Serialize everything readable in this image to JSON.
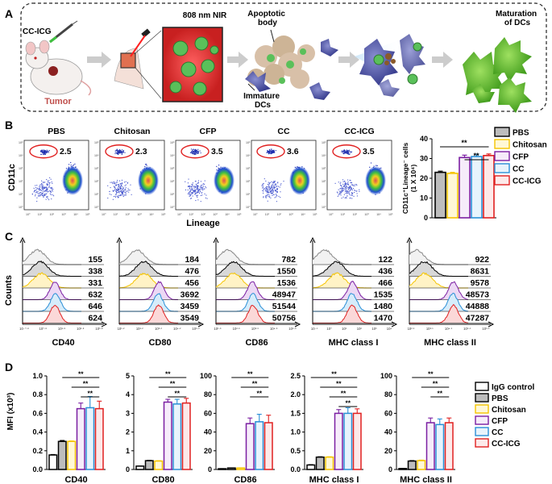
{
  "panel_a": {
    "label": "A",
    "drug": "CC-ICG",
    "nir": "808 nm NIR",
    "tumor": "Tumor",
    "apoptotic": "Apoptotic body",
    "immature": "Immature DCs",
    "maturation": "Maturation of DCs"
  },
  "panel_b": {
    "label": "B",
    "ylabel": "CD11c",
    "xlabel": "Lineage",
    "plots": [
      {
        "title": "PBS",
        "value": "2.5"
      },
      {
        "title": "Chitosan",
        "value": "2.3"
      },
      {
        "title": "CFP",
        "value": "3.5"
      },
      {
        "title": "CC",
        "value": "3.6"
      },
      {
        "title": "CC-ICG",
        "value": "3.5"
      }
    ],
    "ticks": [
      "10⁰",
      "10¹",
      "10²",
      "10³",
      "10⁴",
      "10⁵"
    ]
  },
  "groups": [
    {
      "name": "IgG control",
      "color": "#ffffff",
      "stroke": "#000000"
    },
    {
      "name": "PBS",
      "color": "#bdbdbd",
      "stroke": "#000000"
    },
    {
      "name": "Chitosan",
      "color": "#fff8d6",
      "stroke": "#f5c400"
    },
    {
      "name": "CFP",
      "color": "#f6ecfa",
      "stroke": "#7b1fa2"
    },
    {
      "name": "CC",
      "color": "#e8f4fc",
      "stroke": "#2a8fd6"
    },
    {
      "name": "CC-ICG",
      "color": "#fde9e9",
      "stroke": "#e02020"
    }
  ],
  "sig": "**",
  "chart_data": [
    {
      "type": "bar",
      "panel": "B",
      "title": "",
      "ylabel": "CD11c⁺Lineage⁻ cells",
      "yunits": "(1 X 10⁴)",
      "categories": [
        "PBS",
        "Chitosan",
        "CFP",
        "CC",
        "CC-ICG"
      ],
      "values": [
        23,
        22.5,
        30.5,
        31,
        31.5
      ],
      "errors": [
        0.6,
        0.5,
        1.2,
        1.2,
        0.8
      ],
      "ylim": [
        0,
        40
      ],
      "yticks": [
        "0",
        "10",
        "20",
        "30",
        "40"
      ],
      "legend": [
        "PBS",
        "Chitosan",
        "CFP",
        "CC",
        "CC-ICG"
      ],
      "significance": [
        {
          "from": "PBS",
          "to": "CC-ICG",
          "label": "**"
        },
        {
          "from": "CFP",
          "to": "CC-ICG",
          "label": "**"
        }
      ]
    },
    {
      "type": "histogram",
      "panel": "C",
      "ylabel": "Counts",
      "rows": [
        "IgG control",
        "PBS",
        "Chitosan",
        "CFP",
        "CC",
        "CC-ICG"
      ],
      "markers": [
        {
          "xlabel": "CD40",
          "mfi": [
            "155",
            "338",
            "331",
            "632",
            "646",
            "624"
          ],
          "ticks": [
            "10⁻⁰·⁸",
            "10⁰·⁸",
            "10¹·⁸",
            "10²·⁸",
            "10³·⁸"
          ]
        },
        {
          "xlabel": "CD80",
          "mfi": [
            "184",
            "476",
            "456",
            "3692",
            "3459",
            "3549"
          ],
          "ticks": [
            "10¹·²",
            "10²·²",
            "10³·²",
            "10⁴·²",
            "10⁵·²"
          ]
        },
        {
          "xlabel": "CD86",
          "mfi": [
            "782",
            "1550",
            "1536",
            "48947",
            "51544",
            "50756"
          ],
          "ticks": [
            "10¹·⁶",
            "10²·⁶",
            "10³·⁶",
            "10⁴·⁶",
            "10⁵·⁶"
          ]
        },
        {
          "xlabel": "MHC class I",
          "mfi": [
            "122",
            "436",
            "466",
            "1535",
            "1480",
            "1470"
          ],
          "ticks": [
            "10⁻¹",
            "10⁰",
            "10¹",
            "10²",
            "10³",
            "10⁴"
          ]
        },
        {
          "xlabel": "MHC class II",
          "mfi": [
            "922",
            "8631",
            "9578",
            "48573",
            "44888",
            "47287"
          ],
          "ticks": [
            "10²·¹",
            "10³·¹",
            "10⁴·¹",
            "10⁵·¹",
            "10⁶·¹"
          ]
        }
      ]
    },
    {
      "type": "bar",
      "panel": "D",
      "ylabel": "MFI (x10³)",
      "categories": [
        "IgG control",
        "PBS",
        "Chitosan",
        "CFP",
        "CC",
        "CC-ICG"
      ],
      "subplots": [
        {
          "xlabel": "CD40",
          "values": [
            0.155,
            0.3,
            0.3,
            0.65,
            0.66,
            0.65
          ],
          "errors": [
            0.005,
            0.01,
            0.005,
            0.06,
            0.12,
            0.08
          ],
          "ylim": [
            0,
            1.0
          ],
          "yticks": [
            "0.0",
            "0.2",
            "0.4",
            "0.6",
            "0.8",
            "1.0"
          ],
          "sig_pairs": [
            [
              1,
              5
            ],
            [
              2,
              5
            ],
            [
              3,
              5
            ]
          ]
        },
        {
          "xlabel": "CD80",
          "values": [
            0.18,
            0.47,
            0.45,
            3.6,
            3.5,
            3.55
          ],
          "errors": [
            0.01,
            0.02,
            0.02,
            0.15,
            0.25,
            0.25
          ],
          "ylim": [
            0,
            5
          ],
          "yticks": [
            "0",
            "1",
            "2",
            "3",
            "4",
            "5"
          ],
          "sig_pairs": [
            [
              1,
              5
            ],
            [
              2,
              5
            ],
            [
              3,
              5
            ]
          ]
        },
        {
          "xlabel": "CD86",
          "values": [
            0.8,
            1.6,
            1.6,
            49,
            51,
            50
          ],
          "errors": [
            0.1,
            0.1,
            0.1,
            6,
            8,
            8
          ],
          "ylim": [
            0,
            100
          ],
          "yticks": [
            "0",
            "20",
            "40",
            "60",
            "80",
            "100"
          ],
          "sig_pairs": [
            [
              1,
              5
            ],
            [
              2,
              5
            ],
            [
              3,
              5
            ]
          ]
        },
        {
          "xlabel": "MHC class I",
          "values": [
            0.12,
            0.33,
            0.33,
            1.5,
            1.5,
            1.5
          ],
          "errors": [
            0.01,
            0.01,
            0.01,
            0.1,
            0.15,
            0.12
          ],
          "ylim": [
            0,
            2.5
          ],
          "yticks": [
            "0.0",
            "0.5",
            "1.0",
            "1.5",
            "2.0",
            "2.5"
          ],
          "sig_pairs": [
            [
              0,
              5
            ],
            [
              1,
              5
            ],
            [
              2,
              5
            ],
            [
              3,
              5
            ]
          ]
        },
        {
          "xlabel": "MHC class II",
          "values": [
            1,
            9,
            9.5,
            50,
            48,
            50
          ],
          "errors": [
            0.2,
            0.5,
            0.5,
            5,
            6,
            5
          ],
          "ylim": [
            0,
            100
          ],
          "yticks": [
            "0",
            "20",
            "40",
            "60",
            "80",
            "100"
          ],
          "sig_pairs": [
            [
              1,
              5
            ],
            [
              2,
              5
            ],
            [
              3,
              5
            ]
          ]
        }
      ]
    }
  ],
  "panel_c": {
    "label": "C"
  },
  "panel_d": {
    "label": "D"
  }
}
